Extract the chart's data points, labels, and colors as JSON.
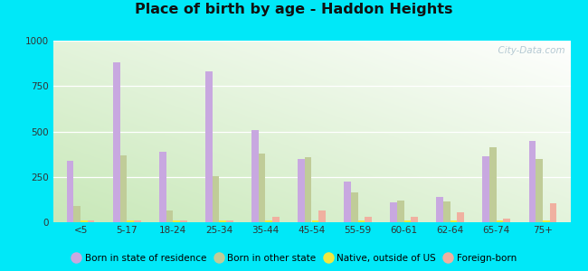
{
  "title": "Place of birth by age - Haddon Heights",
  "categories": [
    "<5",
    "5-17",
    "18-24",
    "25-34",
    "35-44",
    "45-54",
    "55-59",
    "60-61",
    "62-64",
    "65-74",
    "75+"
  ],
  "series": {
    "Born in state of residence": [
      340,
      880,
      390,
      830,
      505,
      350,
      225,
      110,
      140,
      365,
      450
    ],
    "Born in other state": [
      90,
      370,
      65,
      255,
      380,
      360,
      165,
      120,
      115,
      415,
      350
    ],
    "Native, outside of US": [
      8,
      8,
      8,
      8,
      8,
      8,
      8,
      8,
      8,
      8,
      8
    ],
    "Foreign-born": [
      12,
      12,
      12,
      12,
      30,
      65,
      30,
      30,
      55,
      18,
      105
    ]
  },
  "colors": {
    "Born in state of residence": "#c8a8e0",
    "Born in other state": "#c0cc98",
    "Native, outside of US": "#f0e840",
    "Foreign-born": "#f0b0a0"
  },
  "ylim": [
    0,
    1000
  ],
  "yticks": [
    0,
    250,
    500,
    750,
    1000
  ],
  "bar_width": 0.15,
  "bg_colors": [
    "#c8e8c0",
    "#f0faf0"
  ],
  "figure_bg": "#00e8f8",
  "watermark": "  City-Data.com"
}
